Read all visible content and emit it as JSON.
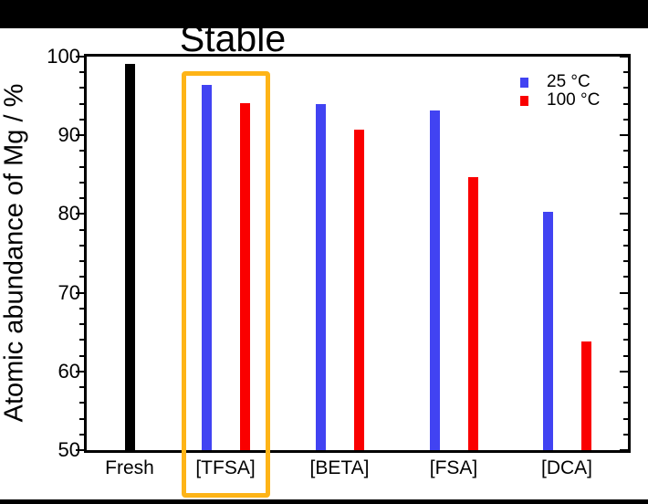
{
  "annotation": {
    "stable": "Stable"
  },
  "chart_data": {
    "type": "bar",
    "title": "",
    "ylabel": "Atomic abundance of Mg / %",
    "xlabel": "",
    "ylim": [
      50,
      100
    ],
    "yticks": [
      50,
      60,
      70,
      80,
      90,
      100
    ],
    "minor_tick_step": 2,
    "grid": false,
    "legend_position": "top-right",
    "categories": [
      "Fresh",
      "[TFSA]",
      "[BETA]",
      "[FSA]",
      "[DCA]"
    ],
    "series": [
      {
        "name": "Fresh",
        "color": "#000000",
        "in_legend": false,
        "values": [
          99.1,
          null,
          null,
          null,
          null
        ]
      },
      {
        "name": "25 °C",
        "color": "#4143f2",
        "in_legend": true,
        "values": [
          null,
          96.4,
          94.0,
          93.2,
          80.3
        ]
      },
      {
        "name": "100 °C",
        "color": "#fa0000",
        "in_legend": true,
        "values": [
          null,
          94.1,
          90.7,
          84.7,
          63.8
        ]
      }
    ],
    "legend": [
      {
        "label": "25 °C",
        "color": "#4143f2"
      },
      {
        "label": "100 °C",
        "color": "#fa0000"
      }
    ],
    "annotations": [
      {
        "text": "Stable",
        "target_category": "[TFSA]",
        "highlight_color": "#feb417"
      }
    ]
  }
}
